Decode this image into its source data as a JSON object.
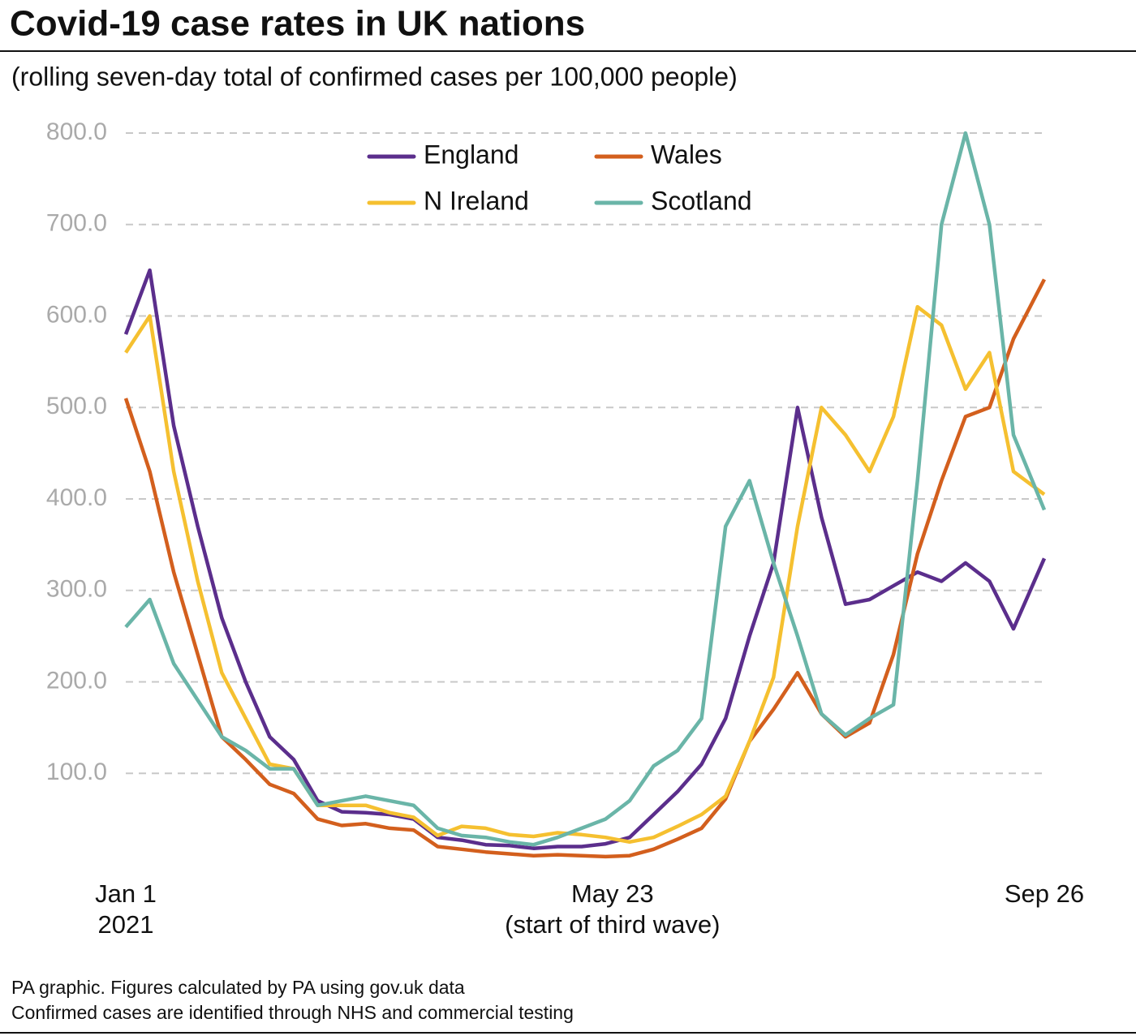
{
  "chart_data": {
    "type": "line",
    "title": "Covid-19 case rates in UK nations",
    "subtitle": "(rolling seven-day total of confirmed cases per 100,000 people)",
    "notes": [
      "PA graphic. Figures calculated by PA using gov.uk data",
      "Confirmed cases are identified through NHS and commercial testing"
    ],
    "x": [
      "2021-01-01",
      "2021-01-08",
      "2021-01-15",
      "2021-01-22",
      "2021-01-29",
      "2021-02-05",
      "2021-02-12",
      "2021-02-19",
      "2021-02-26",
      "2021-03-05",
      "2021-03-12",
      "2021-03-19",
      "2021-03-26",
      "2021-04-02",
      "2021-04-09",
      "2021-04-16",
      "2021-04-23",
      "2021-04-30",
      "2021-05-07",
      "2021-05-14",
      "2021-05-21",
      "2021-05-28",
      "2021-06-04",
      "2021-06-11",
      "2021-06-18",
      "2021-06-25",
      "2021-07-02",
      "2021-07-09",
      "2021-07-16",
      "2021-07-23",
      "2021-07-30",
      "2021-08-06",
      "2021-08-13",
      "2021-08-20",
      "2021-08-27",
      "2021-09-03",
      "2021-09-10",
      "2021-09-17",
      "2021-09-26"
    ],
    "series": [
      {
        "name": "England",
        "color": "#5b2e8c",
        "values": [
          580,
          650,
          480,
          370,
          270,
          200,
          140,
          115,
          70,
          58,
          57,
          55,
          50,
          30,
          27,
          22,
          21,
          18,
          20,
          20,
          23,
          30,
          55,
          80,
          110,
          160,
          250,
          330,
          500,
          380,
          285,
          290,
          305,
          320,
          310,
          330,
          310,
          258,
          335
        ]
      },
      {
        "name": "Wales",
        "color": "#d35f1d",
        "values": [
          510,
          430,
          320,
          230,
          140,
          115,
          88,
          78,
          50,
          43,
          45,
          40,
          38,
          20,
          17,
          14,
          12,
          10,
          11,
          10,
          9,
          10,
          17,
          28,
          40,
          72,
          135,
          170,
          210,
          165,
          140,
          155,
          230,
          340,
          420,
          490,
          500,
          575,
          640
        ]
      },
      {
        "name": "N Ireland",
        "color": "#f5c030",
        "values": [
          560,
          600,
          430,
          310,
          210,
          160,
          110,
          105,
          65,
          65,
          65,
          57,
          52,
          32,
          42,
          40,
          33,
          31,
          35,
          33,
          30,
          25,
          30,
          42,
          55,
          75,
          135,
          205,
          370,
          500,
          470,
          430,
          490,
          610,
          590,
          520,
          560,
          430,
          405
        ]
      },
      {
        "name": "Scotland",
        "color": "#6ab5a8",
        "values": [
          260,
          290,
          220,
          180,
          140,
          125,
          105,
          105,
          65,
          70,
          75,
          70,
          65,
          40,
          32,
          30,
          25,
          22,
          30,
          40,
          50,
          70,
          108,
          125,
          160,
          370,
          420,
          330,
          250,
          165,
          142,
          160,
          175,
          420,
          700,
          800,
          700,
          470,
          388
        ]
      }
    ],
    "xlim": [
      "2021-01-01",
      "2021-09-26"
    ],
    "xticks": [
      {
        "value": "2021-01-01",
        "label": [
          "Jan 1",
          "2021"
        ]
      },
      {
        "value": "2021-05-23",
        "label": [
          "May 23",
          "(start of third wave)"
        ]
      },
      {
        "value": "2021-09-26",
        "label": [
          "Sep 26"
        ]
      }
    ],
    "ylim": [
      0,
      830
    ],
    "yticks": [
      {
        "value": 100,
        "label": "100.0"
      },
      {
        "value": 200,
        "label": "200.0"
      },
      {
        "value": 300,
        "label": "300.0"
      },
      {
        "value": 400,
        "label": "400.0"
      },
      {
        "value": 500,
        "label": "500.0"
      },
      {
        "value": 600,
        "label": "600.0"
      },
      {
        "value": 700,
        "label": "700.0"
      },
      {
        "value": 800,
        "label": "800.0"
      }
    ],
    "grid": true
  }
}
